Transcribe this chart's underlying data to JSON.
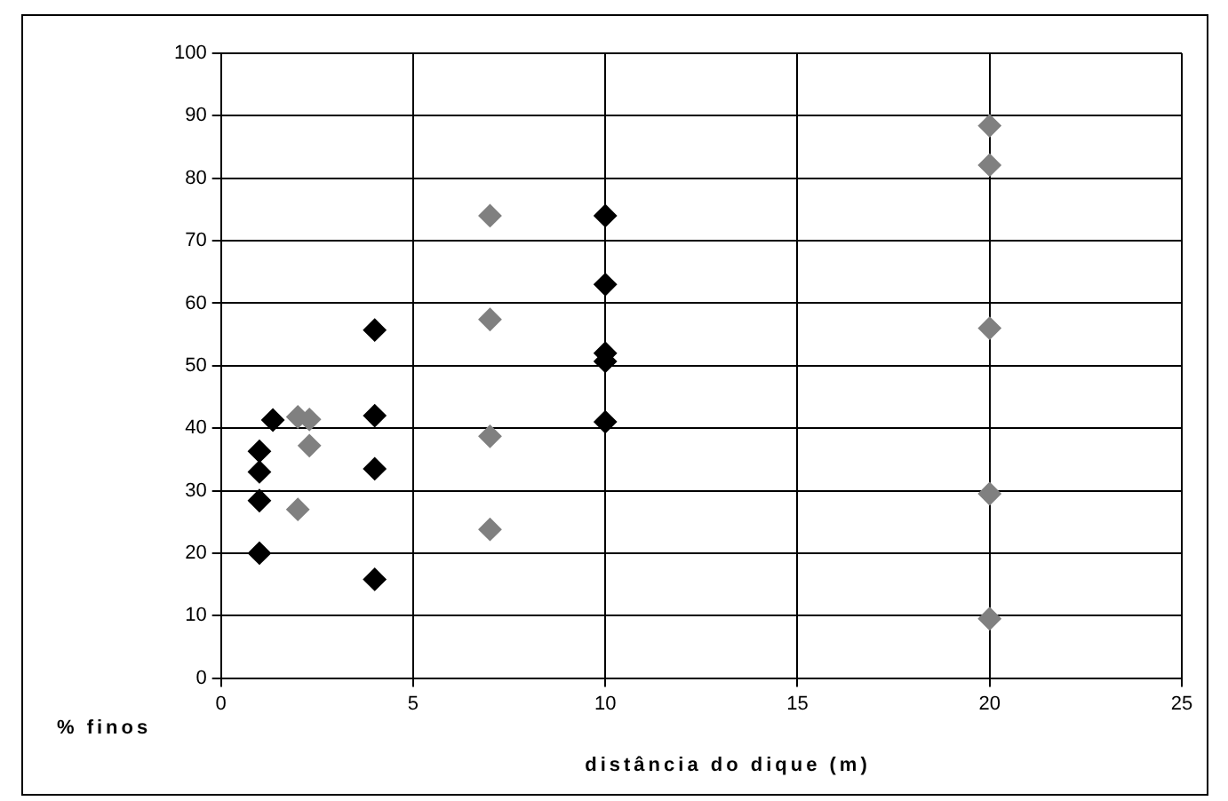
{
  "chart_data": {
    "type": "scatter",
    "xlabel": "distância do dique (m)",
    "ylabel": "% finos",
    "marker": "diamond",
    "grid": true,
    "legend": false,
    "xlim": [
      0,
      25
    ],
    "xticks": [
      0,
      5,
      10,
      15,
      20,
      25
    ],
    "ylim": [
      0,
      100
    ],
    "yticks": [
      0,
      10,
      20,
      30,
      40,
      50,
      60,
      70,
      80,
      90,
      100
    ],
    "series": [
      {
        "color": "#000000",
        "x": [
          1,
          1,
          1,
          1,
          1.35,
          4,
          4,
          4,
          4,
          10,
          10,
          10,
          10,
          10
        ],
        "values": [
          20,
          28.4,
          33,
          36.3,
          41.3,
          55.7,
          42,
          33.5,
          15.8,
          74,
          63,
          52,
          50.7,
          41
        ]
      },
      {
        "color": "#808080",
        "x": [
          2,
          2.3,
          2.3,
          2,
          7,
          7,
          7,
          7,
          20,
          20,
          20,
          20,
          20
        ],
        "values": [
          41.8,
          41.4,
          37.2,
          27,
          74,
          57.4,
          38.7,
          23.8,
          88.4,
          82.1,
          56,
          29.5,
          9.5
        ]
      }
    ]
  }
}
